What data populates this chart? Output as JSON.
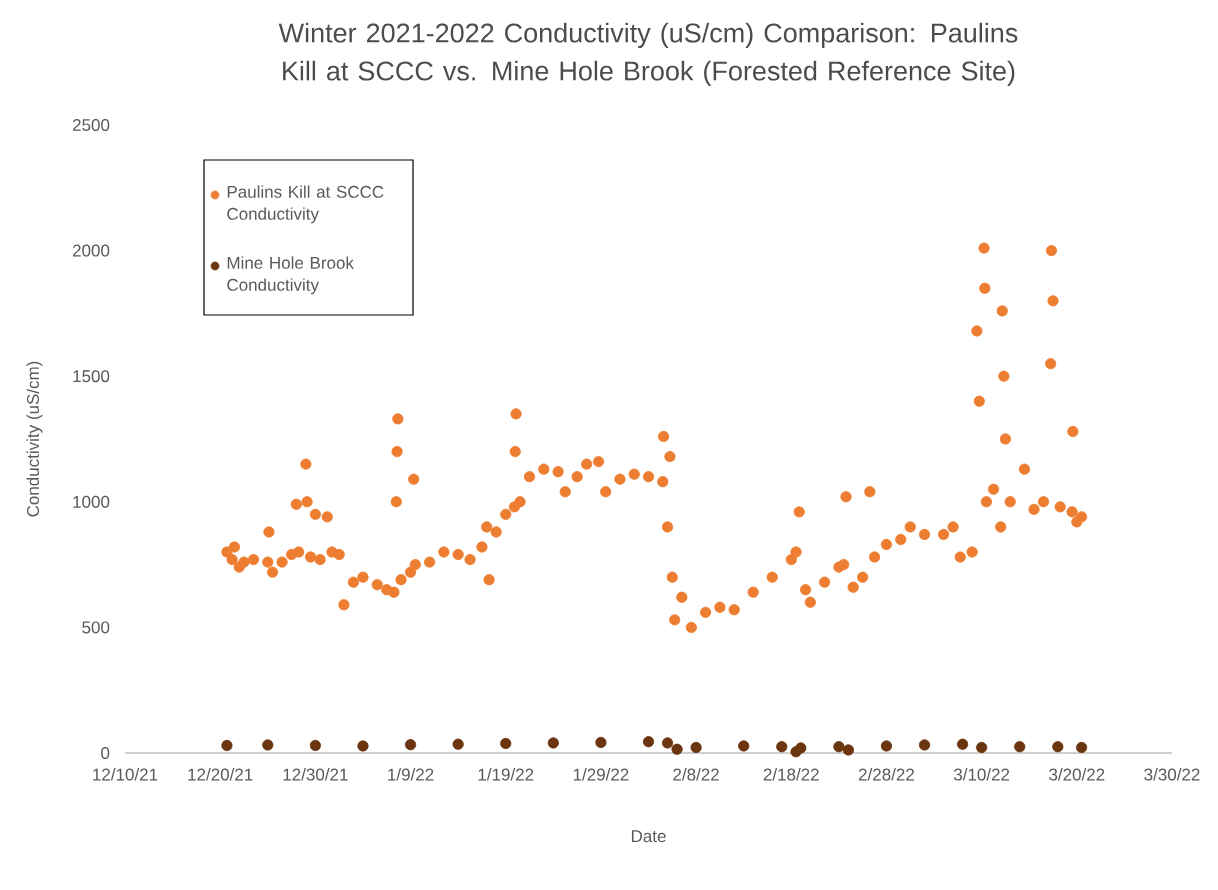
{
  "chart_data": {
    "type": "scatter",
    "title": "Winter 2021-2022  Conductivity (uS/cm) Comparison: Paulins Kill at SCCC vs. Mine Hole Brook (Forested Reference Site)",
    "xlabel": "Date",
    "ylabel": "Conductivity (uS/cm)",
    "xlim": [
      "2021-12-10",
      "2022-03-30"
    ],
    "xticks": [
      {
        "value": "2021-12-10",
        "label": "12/10/21"
      },
      {
        "value": "2021-12-20",
        "label": "12/20/21"
      },
      {
        "value": "2021-12-30",
        "label": "12/30/21"
      },
      {
        "value": "2022-01-09",
        "label": "1/9/22"
      },
      {
        "value": "2022-01-19",
        "label": "1/19/22"
      },
      {
        "value": "2022-01-29",
        "label": "1/29/22"
      },
      {
        "value": "2022-02-08",
        "label": "2/8/22"
      },
      {
        "value": "2022-02-18",
        "label": "2/18/22"
      },
      {
        "value": "2022-02-28",
        "label": "2/28/22"
      },
      {
        "value": "2022-03-10",
        "label": "3/10/22"
      },
      {
        "value": "2022-03-20",
        "label": "3/20/22"
      },
      {
        "value": "2022-03-30",
        "label": "3/30/22"
      }
    ],
    "ylim": [
      0,
      2500
    ],
    "yticks": [
      0,
      500,
      1000,
      1500,
      2000,
      2500
    ],
    "marker": "circle",
    "legend": "top left",
    "series": [
      {
        "name": "Paulins Kill at SCCC Conductivity",
        "color": "#ed7d31",
        "x": [
          "2021-12-20T17:00",
          "2021-12-21T06:00",
          "2021-12-21T12:00",
          "2021-12-22T00:00",
          "2021-12-22T12:00",
          "2021-12-23T12:00",
          "2021-12-25T00:00",
          "2021-12-25T03:00",
          "2021-12-25T12:00",
          "2021-12-26T12:00",
          "2021-12-27T12:00",
          "2021-12-28T00:00",
          "2021-12-28T06:00",
          "2021-12-29T00:00",
          "2021-12-29T03:00",
          "2021-12-29T12:00",
          "2021-12-30T00:00",
          "2021-12-30T12:00",
          "2021-12-31T06:00",
          "2021-12-31T18:00",
          "2022-01-01T12:00",
          "2022-01-02T00:00",
          "2022-01-03T00:00",
          "2022-01-04T00:00",
          "2022-01-05T12:00",
          "2022-01-06T12:00",
          "2022-01-07T06:00",
          "2022-01-07T12:00",
          "2022-01-07T14:00",
          "2022-01-07T16:00",
          "2022-01-08T00:00",
          "2022-01-09T00:00",
          "2022-01-09T08:00",
          "2022-01-09T12:00",
          "2022-01-11T00:00",
          "2022-01-12T12:00",
          "2022-01-14T00:00",
          "2022-01-15T06:00",
          "2022-01-16T12:00",
          "2022-01-17T00:00",
          "2022-01-17T06:00",
          "2022-01-18T00:00",
          "2022-01-19T00:00",
          "2022-01-19T22:00",
          "2022-01-20T00:00",
          "2022-01-20T02:00",
          "2022-01-20T12:00",
          "2022-01-21T12:00",
          "2022-01-23T00:00",
          "2022-01-24T12:00",
          "2022-01-25T06:00",
          "2022-01-26T12:00",
          "2022-01-27T12:00",
          "2022-01-28T18:00",
          "2022-01-29T12:00",
          "2022-01-31T00:00",
          "2022-02-01T12:00",
          "2022-02-03T00:00",
          "2022-02-04T12:00",
          "2022-02-04T14:00",
          "2022-02-05T00:00",
          "2022-02-05T06:00",
          "2022-02-05T12:00",
          "2022-02-05T18:00",
          "2022-02-06T12:00",
          "2022-02-07T12:00",
          "2022-02-09T00:00",
          "2022-02-10T12:00",
          "2022-02-12T00:00",
          "2022-02-14T00:00",
          "2022-02-16T00:00",
          "2022-02-18T00:00",
          "2022-02-18T12:00",
          "2022-02-18T20:00",
          "2022-02-19T12:00",
          "2022-02-20T00:00",
          "2022-02-21T12:00",
          "2022-02-23T00:00",
          "2022-02-23T12:00",
          "2022-02-23T18:00",
          "2022-02-24T12:00",
          "2022-02-25T12:00",
          "2022-02-26T06:00",
          "2022-02-26T18:00",
          "2022-02-28T00:00",
          "2022-03-01T12:00",
          "2022-03-02T12:00",
          "2022-03-04T00:00",
          "2022-03-06T00:00",
          "2022-03-07T00:00",
          "2022-03-07T18:00",
          "2022-03-09T00:00",
          "2022-03-09T12:00",
          "2022-03-09T18:00",
          "2022-03-10T06:00",
          "2022-03-10T08:00",
          "2022-03-10T12:00",
          "2022-03-11T06:00",
          "2022-03-12T00:00",
          "2022-03-12T04:00",
          "2022-03-12T08:00",
          "2022-03-12T12:00",
          "2022-03-13T00:00",
          "2022-03-14T12:00",
          "2022-03-15T12:00",
          "2022-03-16T12:00",
          "2022-03-17T06:00",
          "2022-03-17T08:00",
          "2022-03-17T12:00",
          "2022-03-18T06:00",
          "2022-03-19T12:00",
          "2022-03-19T14:00",
          "2022-03-20T00:00",
          "2022-03-20T12:00"
        ],
        "values": [
          800,
          770,
          820,
          740,
          760,
          770,
          760,
          880,
          720,
          760,
          790,
          990,
          800,
          1150,
          1000,
          780,
          950,
          770,
          940,
          800,
          790,
          590,
          680,
          700,
          670,
          650,
          640,
          1000,
          1200,
          1330,
          690,
          720,
          1090,
          750,
          760,
          800,
          790,
          770,
          820,
          900,
          690,
          880,
          950,
          980,
          1200,
          1350,
          1000,
          1100,
          1130,
          1120,
          1040,
          1100,
          1150,
          1160,
          1040,
          1090,
          1110,
          1100,
          1080,
          1260,
          900,
          1180,
          700,
          530,
          620,
          500,
          560,
          580,
          570,
          640,
          700,
          770,
          800,
          960,
          650,
          600,
          680,
          740,
          750,
          1020,
          660,
          700,
          1040,
          780,
          830,
          850,
          900,
          870,
          870,
          900,
          780,
          800,
          1680,
          1400,
          2010,
          1850,
          1000,
          1050,
          900,
          1760,
          1500,
          1250,
          1000,
          1130,
          970,
          1000,
          1550,
          2000,
          1800,
          980,
          960,
          1280,
          920,
          940
        ]
      },
      {
        "name": "Mine Hole Brook Conductivity",
        "color": "#6b3510",
        "x": [
          "2021-12-20T17:00",
          "2021-12-25T00:00",
          "2021-12-30T00:00",
          "2022-01-04T00:00",
          "2022-01-09T00:00",
          "2022-01-14T00:00",
          "2022-01-19T00:00",
          "2022-01-24T00:00",
          "2022-01-29T00:00",
          "2022-02-03T00:00",
          "2022-02-05T00:00",
          "2022-02-06T00:00",
          "2022-02-08T00:00",
          "2022-02-13T00:00",
          "2022-02-17T00:00",
          "2022-02-18T12:00",
          "2022-02-19T00:00",
          "2022-02-23T00:00",
          "2022-02-24T00:00",
          "2022-02-28T00:00",
          "2022-03-04T00:00",
          "2022-03-08T00:00",
          "2022-03-10T00:00",
          "2022-03-14T00:00",
          "2022-03-18T00:00",
          "2022-03-20T12:00"
        ],
        "values": [
          30,
          32,
          30,
          28,
          33,
          35,
          38,
          40,
          42,
          45,
          40,
          15,
          22,
          28,
          25,
          5,
          20,
          25,
          12,
          28,
          32,
          35,
          22,
          25,
          25,
          22
        ]
      }
    ]
  }
}
